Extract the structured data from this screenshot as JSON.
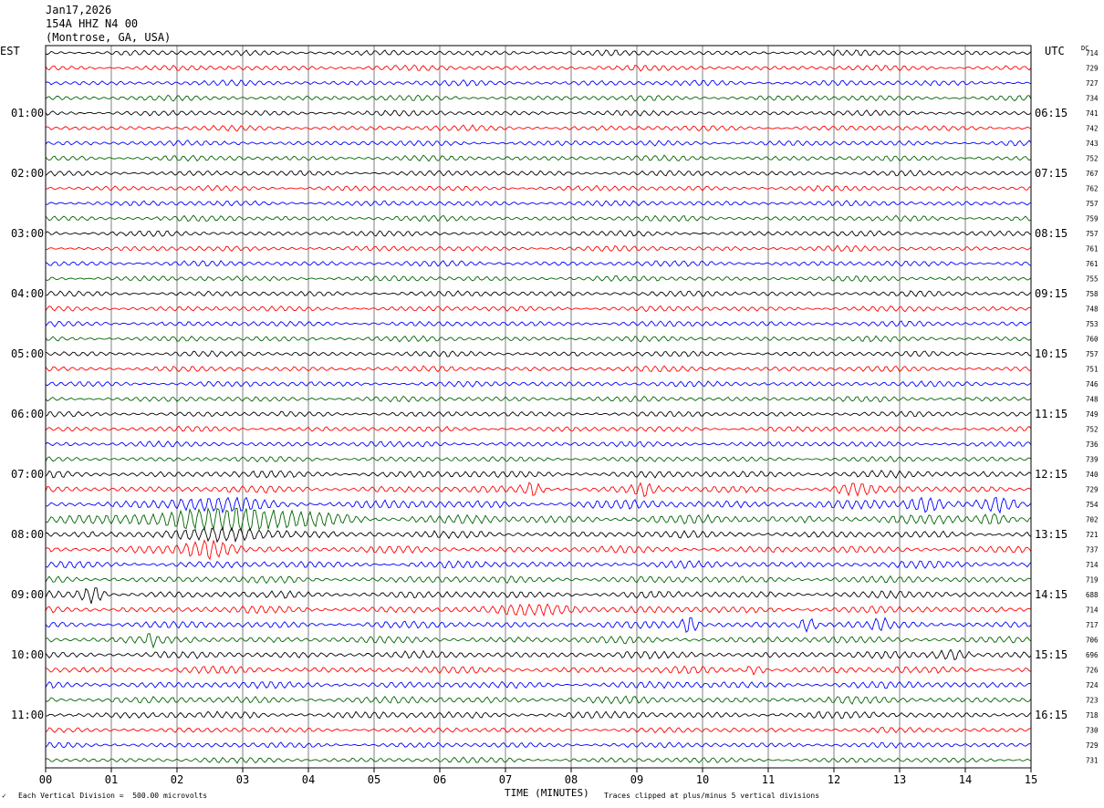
{
  "header": {
    "date": "Jan17,2026",
    "station": "154A HHZ N4 00",
    "location": "(Montrose, GA, USA)"
  },
  "left_zone": "EST",
  "right_zone": "UTC",
  "dc_label": "DC",
  "footer": {
    "scale_note": "Each Vertical Division =  500.00 microvolts",
    "clip_note": "Traces clipped at plus/minus 5 vertical divisions",
    "corner_mark": "✓"
  },
  "colors": [
    "#000000",
    "#ff0000",
    "#0000ff",
    "#006400"
  ],
  "chart_data": {
    "type": "line",
    "title": "Jan17,2026 154A HHZ N4 00 (Montrose, GA, USA)",
    "xlabel": "TIME (MINUTES)",
    "xlim": [
      0,
      15
    ],
    "x_ticks": [
      "00",
      "01",
      "02",
      "03",
      "04",
      "05",
      "06",
      "07",
      "08",
      "09",
      "10",
      "11",
      "12",
      "13",
      "14",
      "15"
    ],
    "trace_minutes": 15,
    "left_hour_labels": [
      "01:00",
      "02:00",
      "03:00",
      "04:00",
      "05:00",
      "06:00",
      "07:00",
      "08:00",
      "09:00",
      "10:00",
      "11:00"
    ],
    "right_hour_labels": [
      "06:15",
      "07:15",
      "08:15",
      "09:15",
      "10:15",
      "11:15",
      "12:15",
      "13:15",
      "14:15",
      "15:15",
      "16:15"
    ],
    "dc_offsets": [
      714,
      729,
      727,
      734,
      741,
      742,
      743,
      752,
      767,
      762,
      757,
      759,
      757,
      761,
      761,
      755,
      758,
      748,
      753,
      760,
      757,
      751,
      746,
      748,
      749,
      752,
      736,
      739,
      740,
      729,
      754,
      702,
      721,
      737,
      714,
      719,
      688,
      714,
      717,
      706,
      696,
      726,
      724,
      723,
      718,
      730,
      729,
      731
    ],
    "grid": true
  }
}
